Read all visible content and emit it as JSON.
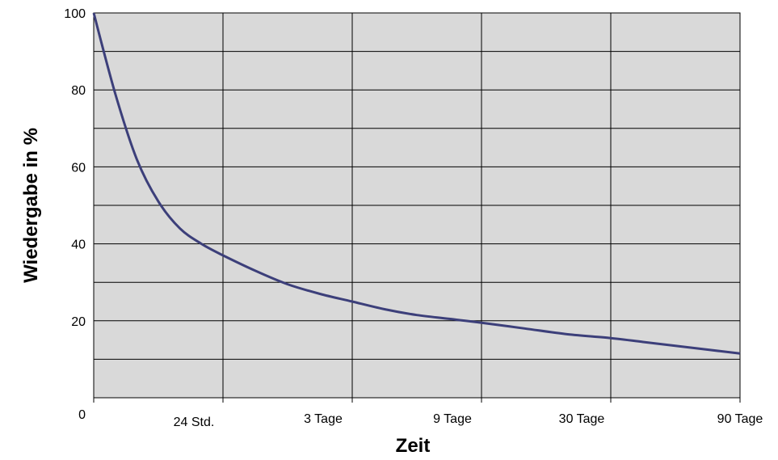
{
  "chart_data": {
    "type": "line",
    "title": "",
    "xlabel": "Zeit",
    "ylabel": "Wiedergabe in %",
    "x_tick_labels": [
      "24 Std.",
      "3 Tage",
      "9 Tage",
      "30 Tage",
      "90 Tage"
    ],
    "y_tick_labels": [
      "0",
      "20",
      "40",
      "60",
      "80",
      "100"
    ],
    "ylim": [
      0,
      100
    ],
    "grid": true,
    "legend": "none",
    "series": [
      {
        "x": [
          "0",
          "4 Std.",
          "8 Std.",
          "12 Std.",
          "16 Std.",
          "20 Std.",
          "24 Std.",
          "36 Std.",
          "48 Std.",
          "60 Std.",
          "3 Tage",
          "4.5 Tage",
          "6 Tage",
          "7.5 Tage",
          "9 Tage",
          "16 Tage",
          "23 Tage",
          "30 Tage",
          "45 Tage",
          "60 Tage",
          "75 Tage",
          "90 Tage"
        ],
        "values": [
          100,
          79,
          62,
          51,
          44,
          40,
          37,
          33,
          29.5,
          27,
          25,
          23,
          21.5,
          20.5,
          19.5,
          18,
          16.5,
          15.5,
          14.5,
          13.5,
          12.5,
          11.5
        ]
      }
    ]
  },
  "colors": {
    "plot_background": "#d9d9d9",
    "grid": "#000000",
    "line": "#3c3f7a"
  }
}
